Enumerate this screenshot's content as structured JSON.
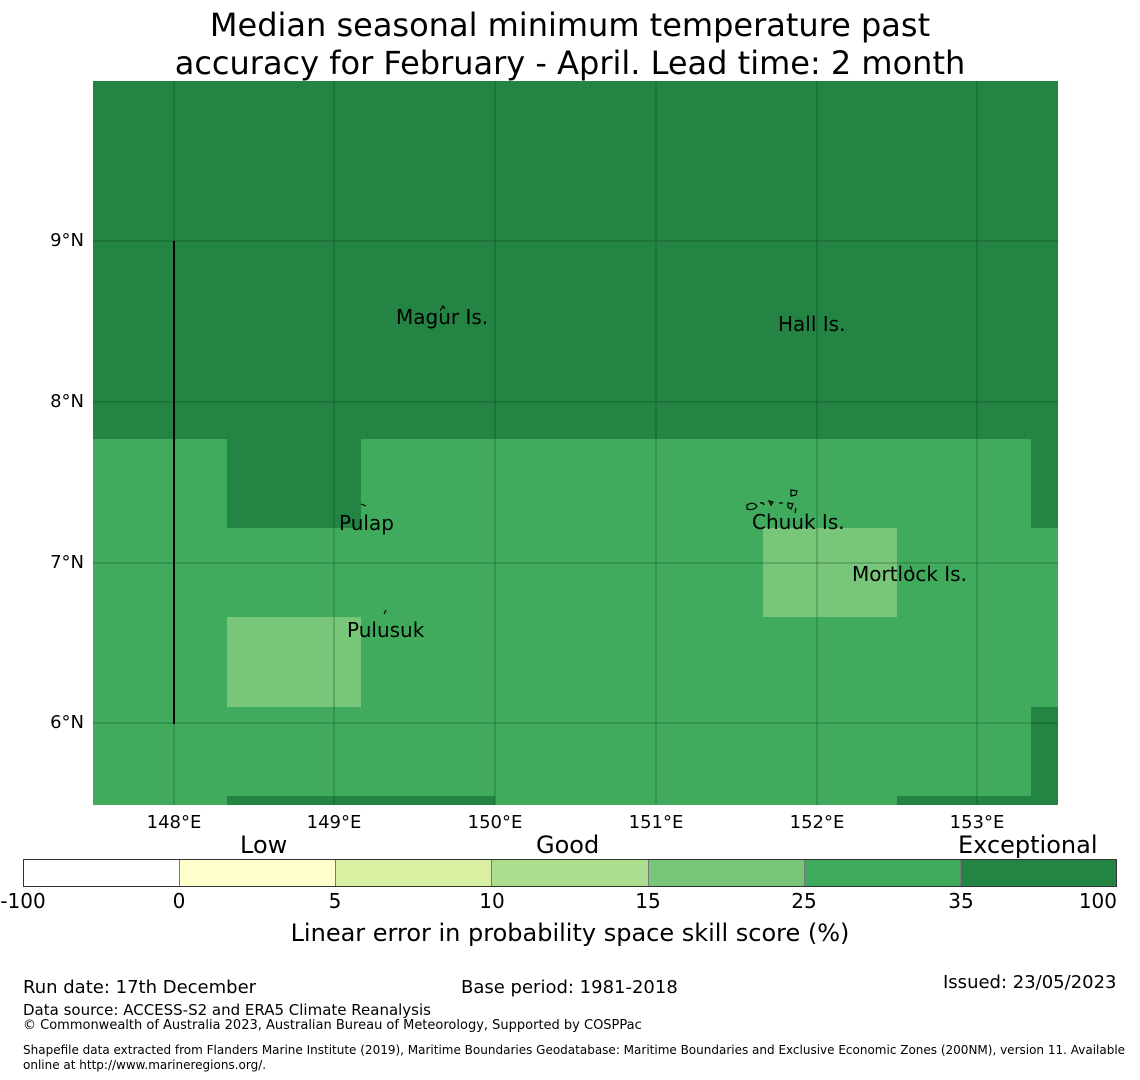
{
  "title": {
    "line1": "Median seasonal minimum temperature past",
    "line2": "accuracy for February - April. Lead time: 2 month"
  },
  "map": {
    "lat_labels": [
      "9°N",
      "8°N",
      "7°N",
      "6°N"
    ],
    "lon_labels": [
      "148°E",
      "149°E",
      "150°E",
      "151°E",
      "152°E",
      "153°E"
    ],
    "places": [
      "Magur Is.",
      "Hall Is.",
      "Pulap",
      "Chuuk Is.",
      "Mortlock Is.",
      "Pulusuk"
    ],
    "colors": {
      "exceptional": "#238443",
      "good_high": "#41ab5d",
      "good_mid": "#78c679"
    }
  },
  "legend": {
    "categories": [
      "Low",
      "Good",
      "Exceptional"
    ],
    "ticks": [
      "-100",
      "0",
      "5",
      "10",
      "15",
      "25",
      "35",
      "100"
    ],
    "colors": [
      "#ffffff",
      "#ffffcc",
      "#d9f0a3",
      "#addd8e",
      "#78c679",
      "#41ab5d",
      "#238443"
    ],
    "title": "Linear error in probability space skill score (%)"
  },
  "footer": {
    "run_date": "Run date: 17th December",
    "base_period": "Base period: 1981-2018",
    "issued": "Issued: 23/05/2023",
    "data_source": "Data source: ACCESS-S2 and ERA5 Climate Reanalysis",
    "copyright": "© Commonwealth of Australia 2023, Australian Bureau of Meteorology, Supported by COSPPac",
    "shapefile_line1": "Shapefile data extracted from Flanders Marine Institute (2019), Maritime Boundaries Geodatabase: Maritime Boundaries and Exclusive Economic Zones (200NM), version 11. Available",
    "shapefile_line2": "online at http://www.marineregions.org/."
  }
}
